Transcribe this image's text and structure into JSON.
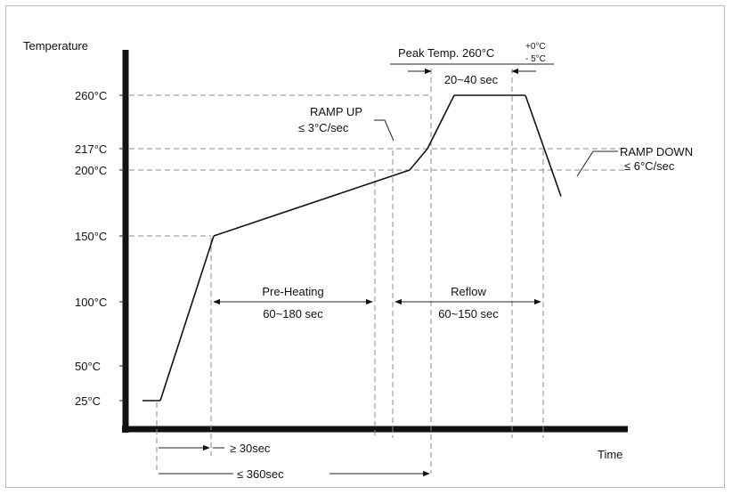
{
  "chart_data": {
    "type": "line",
    "title": "",
    "xlabel": "Time",
    "ylabel": "Temperature",
    "y_ticks": [
      "25°C",
      "50°C",
      "100°C",
      "150°C",
      "200°C",
      "217°C",
      "260°C"
    ],
    "y_tick_values": [
      25,
      50,
      100,
      150,
      200,
      217,
      260
    ],
    "series": [
      {
        "x": [
          0,
          10,
          40,
          150,
          160,
          175,
          215,
          235
        ],
        "y": [
          25,
          25,
          150,
          200,
          217,
          260,
          260,
          180
        ]
      }
    ],
    "annotations": {
      "peak_label": "Peak Temp. 260°C",
      "peak_tol_plus": "+0°C",
      "peak_tol_minus": "- 5°C",
      "peak_duration": "20~40 sec",
      "ramp_up_title": "RAMP UP",
      "ramp_up_rate": "≤ 3°C/sec",
      "ramp_down_title": "RAMP DOWN",
      "ramp_down_rate": "≤ 6°C/sec",
      "preheat_title": "Pre-Heating",
      "preheat_duration": "60~180 sec",
      "reflow_title": "Reflow",
      "reflow_duration": "60~150 sec",
      "min_time": "≥ 30sec",
      "max_time": "≤ 360sec"
    }
  }
}
